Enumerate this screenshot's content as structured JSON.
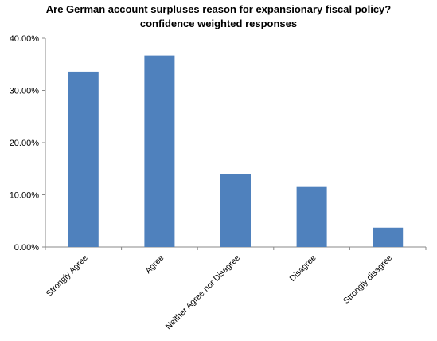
{
  "chart_data": {
    "type": "bar",
    "title": "Are German account surpluses reason for expansionary fiscal policy?",
    "subtitle": "confidence weighted responses",
    "categories": [
      "Strongly Agree",
      "Agree",
      "Neither Agree nor Disagree",
      "Disagree",
      "Strongly disagree"
    ],
    "values": [
      33.6,
      36.7,
      14.0,
      11.5,
      3.7
    ],
    "ylim": [
      0,
      40
    ],
    "yticks": [
      0,
      10,
      20,
      30,
      40
    ],
    "ytick_labels": [
      "0.00%",
      "10.00%",
      "20.00%",
      "30.00%",
      "40.00%"
    ],
    "xlabel": "",
    "ylabel": "",
    "grid": false,
    "legend": "none",
    "bar_color": "#4F81BD"
  }
}
